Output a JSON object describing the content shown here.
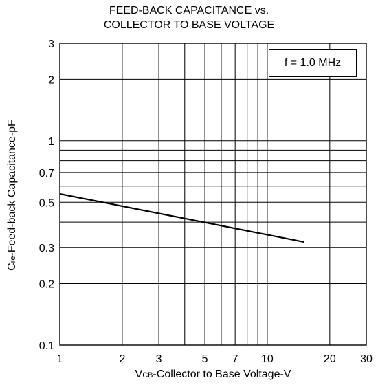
{
  "chart_data": {
    "type": "line",
    "title": "FEED-BACK CAPACITANCE vs.",
    "subtitle": "COLLECTOR TO BASE VOLTAGE",
    "xlabel": {
      "prefix": "V",
      "sub": "CB",
      "rest": "-Collector to Base Voltage-V"
    },
    "ylabel": {
      "prefix": "C",
      "sub": "re",
      "rest": "-Feed-back Capacitance-pF"
    },
    "xscale": "log",
    "yscale": "log",
    "xlim": [
      1,
      30
    ],
    "ylim": [
      0.1,
      3
    ],
    "grid": true,
    "x_ticks": [
      1,
      2,
      3,
      5,
      7,
      10,
      20,
      30
    ],
    "x_tick_labels": [
      "1",
      "2",
      "3",
      "5",
      "7",
      "10",
      "20",
      "30"
    ],
    "y_ticks": [
      0.1,
      0.2,
      0.3,
      0.5,
      0.7,
      1,
      2,
      3
    ],
    "y_tick_labels": [
      "0.1",
      "0.2",
      "0.3",
      "0.5",
      "0.7",
      "1",
      "2",
      "3"
    ],
    "x_gridlines": [
      2,
      3,
      4,
      5,
      6,
      7,
      8,
      9,
      10,
      20
    ],
    "y_gridlines": [
      0.2,
      0.3,
      0.4,
      0.5,
      0.6,
      0.7,
      0.8,
      0.9,
      1,
      2
    ],
    "annotation": "f = 1.0 MHz",
    "series": [
      {
        "x": [
          1,
          15
        ],
        "y": [
          0.55,
          0.32
        ]
      }
    ]
  }
}
